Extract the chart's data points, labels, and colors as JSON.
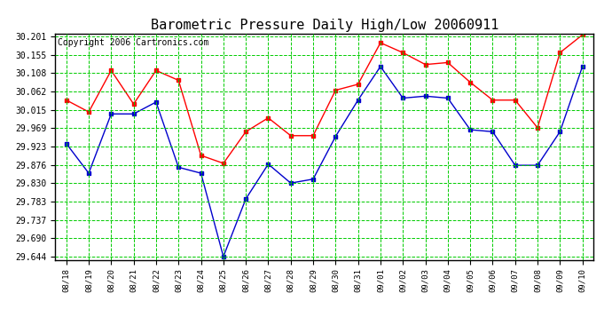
{
  "title": "Barometric Pressure Daily High/Low 20060911",
  "copyright": "Copyright 2006 Cartronics.com",
  "dates": [
    "08/18",
    "08/19",
    "08/20",
    "08/21",
    "08/22",
    "08/23",
    "08/24",
    "08/25",
    "08/26",
    "08/27",
    "08/28",
    "08/29",
    "08/30",
    "08/31",
    "09/01",
    "09/02",
    "09/03",
    "09/04",
    "09/05",
    "09/06",
    "09/07",
    "09/08",
    "09/09",
    "09/10"
  ],
  "high_values": [
    30.04,
    30.01,
    30.115,
    30.03,
    30.115,
    30.09,
    29.9,
    29.88,
    29.96,
    29.995,
    29.95,
    29.95,
    30.065,
    30.08,
    30.185,
    30.16,
    30.13,
    30.135,
    30.085,
    30.04,
    30.04,
    29.97,
    30.16,
    30.205
  ],
  "low_values": [
    29.93,
    29.855,
    30.005,
    30.005,
    30.035,
    29.87,
    29.855,
    29.644,
    29.79,
    29.878,
    29.83,
    29.84,
    29.948,
    30.04,
    30.125,
    30.045,
    30.05,
    30.045,
    29.965,
    29.96,
    29.875,
    29.875,
    29.96,
    30.125
  ],
  "high_color": "#FF0000",
  "low_color": "#0000CC",
  "grid_color": "#00CC00",
  "background_color": "#FFFFFF",
  "border_color": "#000000",
  "yticks": [
    29.644,
    29.69,
    29.737,
    29.783,
    29.83,
    29.876,
    29.923,
    29.969,
    30.015,
    30.062,
    30.108,
    30.155,
    30.201
  ],
  "title_fontsize": 11,
  "copyright_fontsize": 7
}
